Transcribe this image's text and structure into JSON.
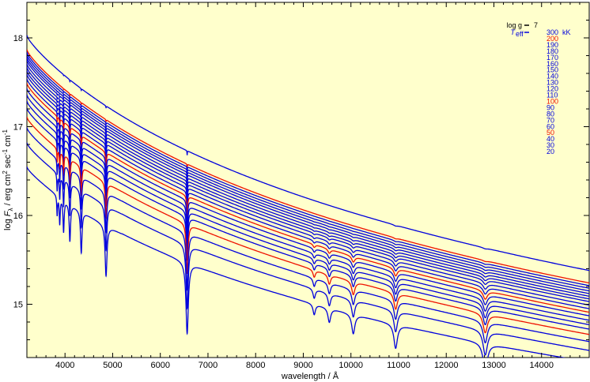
{
  "chart_data": {
    "type": "line",
    "title": "",
    "xlabel": "wavelength / Å",
    "ylabel": "log F_λ / erg cm^2 sec^-1 cm^-1",
    "ylabel_parts": {
      "log": "log ",
      "F": "F",
      "lambda_sub": "λ",
      "unit": " / erg cm",
      "exp1": "2",
      "sec": " sec",
      "exp2": "-1",
      "cm": " cm",
      "exp3": "-1"
    },
    "xlim": [
      3200,
      15000
    ],
    "ylim": [
      14.4,
      18.4
    ],
    "x_ticks": [
      4000,
      5000,
      6000,
      7000,
      8000,
      9000,
      10000,
      11000,
      12000,
      13000,
      14000
    ],
    "y_ticks": [
      15,
      16,
      17,
      18
    ],
    "grid": false,
    "background": "#ffffcc",
    "legend": {
      "placement": "top-right",
      "logg_label": "log g",
      "logg_value": "7",
      "teff_label": "T",
      "teff_sub": "eff",
      "unit": "kK"
    },
    "series": [
      {
        "name": "300",
        "color": "#0000dd",
        "y_start": 18.03,
        "y_end": 15.38
      },
      {
        "name": "200",
        "color": "#ee1100",
        "y_start": 17.87,
        "y_end": 15.24
      },
      {
        "name": "190",
        "color": "#0000dd",
        "y_start": 17.84,
        "y_end": 15.21
      },
      {
        "name": "180",
        "color": "#0000dd",
        "y_start": 17.81,
        "y_end": 15.18
      },
      {
        "name": "170",
        "color": "#0000dd",
        "y_start": 17.78,
        "y_end": 15.15
      },
      {
        "name": "160",
        "color": "#0000dd",
        "y_start": 17.75,
        "y_end": 15.12
      },
      {
        "name": "150",
        "color": "#0000dd",
        "y_start": 17.71,
        "y_end": 15.09
      },
      {
        "name": "140",
        "color": "#0000dd",
        "y_start": 17.67,
        "y_end": 15.06
      },
      {
        "name": "130",
        "color": "#0000dd",
        "y_start": 17.63,
        "y_end": 15.03
      },
      {
        "name": "120",
        "color": "#0000dd",
        "y_start": 17.59,
        "y_end": 14.99
      },
      {
        "name": "110",
        "color": "#0000dd",
        "y_start": 17.54,
        "y_end": 14.95
      },
      {
        "name": "100",
        "color": "#ee1100",
        "y_start": 17.49,
        "y_end": 14.91
      },
      {
        "name": "90",
        "color": "#0000dd",
        "y_start": 17.43,
        "y_end": 14.87
      },
      {
        "name": "80",
        "color": "#0000dd",
        "y_start": 17.36,
        "y_end": 14.82
      },
      {
        "name": "70",
        "color": "#0000dd",
        "y_start": 17.29,
        "y_end": 14.77
      },
      {
        "name": "60",
        "color": "#0000dd",
        "y_start": 17.21,
        "y_end": 14.72
      },
      {
        "name": "50",
        "color": "#ee1100",
        "y_start": 17.11,
        "y_end": 14.66
      },
      {
        "name": "40",
        "color": "#0000dd",
        "y_start": 16.99,
        "y_end": 14.58
      },
      {
        "name": "30",
        "color": "#0000dd",
        "y_start": 16.82,
        "y_end": 14.48
      },
      {
        "name": "20",
        "color": "#0000dd",
        "y_start": 16.55,
        "y_end": 14.35
      }
    ],
    "absorption_lines": [
      3835,
      3889,
      3970,
      4102,
      4341,
      4861,
      6563,
      9229,
      9546,
      10049,
      10938,
      12818
    ]
  }
}
